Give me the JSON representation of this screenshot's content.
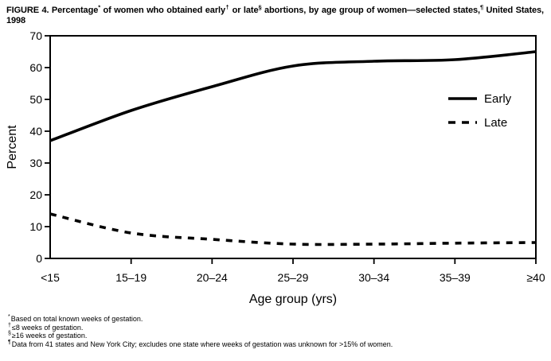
{
  "figure": {
    "title_segments": [
      {
        "t": "FIGURE 4. Percentage",
        "sup": false
      },
      {
        "t": "*",
        "sup": true
      },
      {
        "t": " of women who obtained early",
        "sup": false
      },
      {
        "t": "†",
        "sup": true
      },
      {
        "t": " or late",
        "sup": false
      },
      {
        "t": "§",
        "sup": true
      },
      {
        "t": " abortions, by age group of women—selected states,",
        "sup": false
      },
      {
        "t": "¶",
        "sup": true
      },
      {
        "t": " United States, 1998",
        "sup": false
      }
    ],
    "footnotes": [
      {
        "marker": "*",
        "text": "Based on total known weeks of gestation."
      },
      {
        "marker": "†",
        "text": "≤8 weeks of gestation."
      },
      {
        "marker": "§",
        "text": "≥16 weeks of gestation."
      },
      {
        "marker": "¶",
        "text": "Data from 41 states and New York City; excludes one state where weeks of gestation was unknown for >15% of women."
      }
    ]
  },
  "chart_data": {
    "type": "line",
    "categories": [
      "<15",
      "15–19",
      "20–24",
      "25–29",
      "30–34",
      "35–39",
      "≥40"
    ],
    "series": [
      {
        "name": "Early",
        "style": "solid",
        "values": [
          37,
          46.5,
          54,
          60.5,
          62,
          62.5,
          65
        ]
      },
      {
        "name": "Late",
        "style": "dashed",
        "values": [
          14,
          8,
          6,
          4.5,
          4.5,
          4.8,
          5
        ]
      }
    ],
    "xlabel": "Age group (yrs)",
    "ylabel": "Percent",
    "ylim": [
      0,
      70
    ],
    "yticks": [
      0,
      10,
      20,
      30,
      40,
      50,
      60,
      70
    ],
    "grid": false,
    "legend_position": "inside-right",
    "line_color": "#000000",
    "background": "#ffffff"
  }
}
